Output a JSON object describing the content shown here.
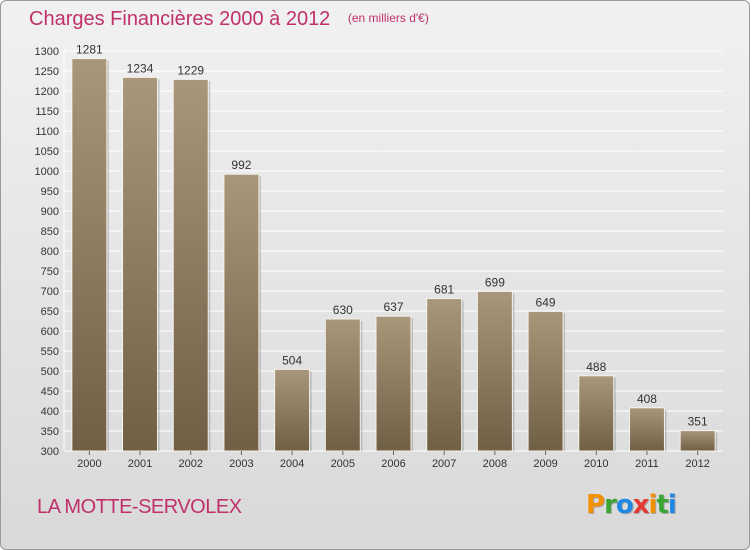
{
  "chart_data": {
    "type": "bar",
    "title": "Charges Financières 2000 à 2012",
    "subtitle": "(en milliers d'€)",
    "categories": [
      "2000",
      "2001",
      "2002",
      "2003",
      "2004",
      "2005",
      "2006",
      "2007",
      "2008",
      "2009",
      "2010",
      "2011",
      "2012"
    ],
    "values": [
      1281,
      1234,
      1229,
      992,
      504,
      630,
      637,
      681,
      699,
      649,
      488,
      408,
      351
    ],
    "ylim": [
      300,
      1300
    ],
    "ytick_step": 50,
    "grid": true,
    "bar_color": "#8b7a5e",
    "xlabel": "",
    "ylabel": ""
  },
  "commune": "LA MOTTE-SERVOLEX",
  "logo": {
    "letters": [
      "P",
      "r",
      "o",
      "x",
      "i",
      "t",
      "i"
    ],
    "colors": [
      "#f39200",
      "#3aa535",
      "#1e88e5",
      "#e53935",
      "#f39200",
      "#3aa535",
      "#1e88e5"
    ]
  }
}
